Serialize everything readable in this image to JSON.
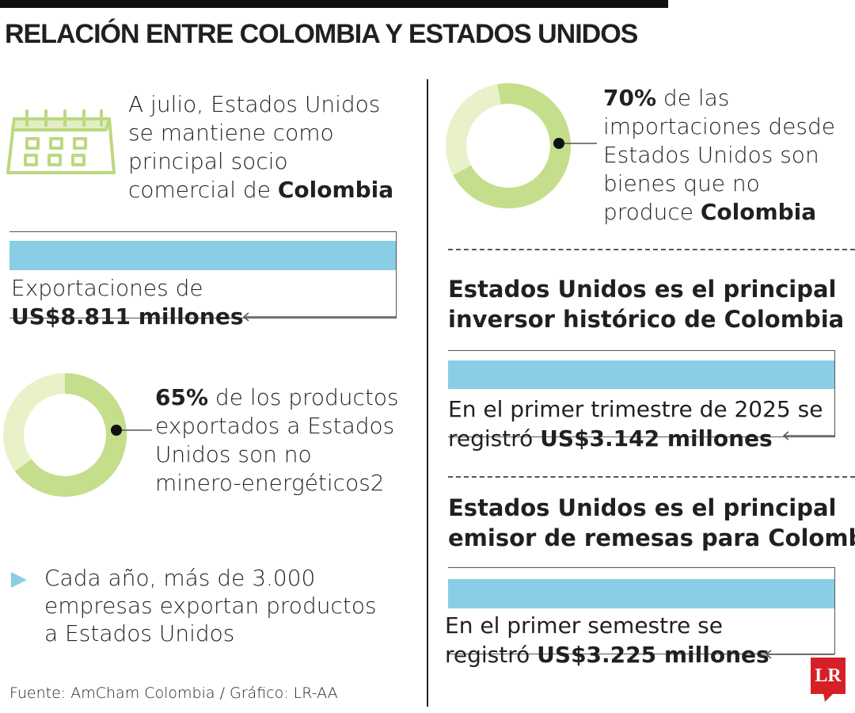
{
  "title": "RELACIÓN ENTRE COLOMBIA Y ESTADOS UNIDOS",
  "colors": {
    "donut_fill": "#c5de8c",
    "donut_rest": "#e8f1c8",
    "bar": "#89cee4",
    "logo": "#d62027",
    "calendar": "#bcd97f"
  },
  "left": {
    "intro": {
      "icon": "calendar-icon",
      "l1": "A julio, Estados Unidos",
      "l2": "se mantiene como",
      "l3": "principal socio",
      "l4_text": "comercial de ",
      "l4_bold": "Colombia"
    },
    "exports": {
      "l1": "Exportaciones de",
      "l2_bold": "US$8.811 millones"
    },
    "donut": {
      "percent": 65,
      "pct_label": "65%",
      "l1_rest": " de los productos",
      "l2": "exportados a Estados",
      "l3": "Unidos son no",
      "l4": "minero-energéticos2"
    },
    "companies": {
      "icon": "triangle-bullet-icon",
      "l1": "Cada año, más de 3.000",
      "l2": "empresas exportan productos",
      "l3": "a Estados Unidos"
    },
    "source": "Fuente: AmCham Colombia / Gráfico: LR-AA"
  },
  "right": {
    "donut": {
      "percent": 70,
      "pct_label": "70%",
      "l1_rest": " de las",
      "l2": "importaciones desde",
      "l3": "Estados Unidos son",
      "l4": "bienes que no",
      "l5_text": "produce ",
      "l5_bold": "Colombia"
    },
    "investor": {
      "h1": "Estados Unidos es el principal",
      "h2": "inversor histórico de Colombia",
      "l1": "En el primer trimestre de 2025 se",
      "l2_text": "registró ",
      "l2_bold": "US$3.142 millones"
    },
    "remittances": {
      "h1": "Estados Unidos es el principal",
      "h2": "emisor de remesas para Colombia",
      "l1": "En el primer semestre se",
      "l2_text": "registró ",
      "l2_bold": "US$3.225 millones"
    }
  },
  "logo": "LR"
}
